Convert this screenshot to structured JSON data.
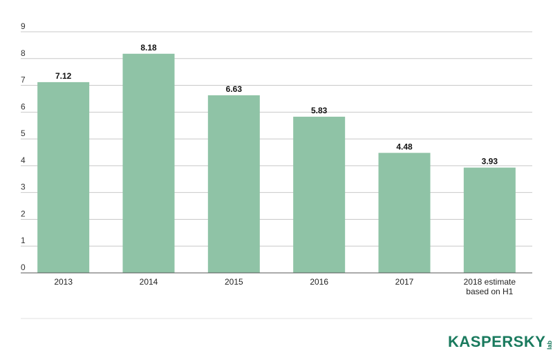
{
  "chart_data": {
    "type": "bar",
    "categories": [
      "2013",
      "2014",
      "2015",
      "2016",
      "2017",
      [
        "2018 estimate",
        "based on H1"
      ]
    ],
    "values": [
      7.12,
      8.18,
      6.63,
      5.83,
      4.48,
      3.93
    ],
    "data_labels": [
      "7.12",
      "8.18",
      "6.63",
      "5.83",
      "4.48",
      "3.93"
    ],
    "ylim": [
      0,
      9
    ],
    "yticks": [
      "0",
      "1",
      "2",
      "3",
      "4",
      "5",
      "6",
      "7",
      "8",
      "9"
    ],
    "grid": true,
    "colors": {
      "bar": "#8fc3a6",
      "grid": "#c8c8c8",
      "axis": "#555555"
    }
  },
  "logo": {
    "word": "KASPERSKY",
    "suffix": "lab",
    "color": "#1a7a5e"
  }
}
